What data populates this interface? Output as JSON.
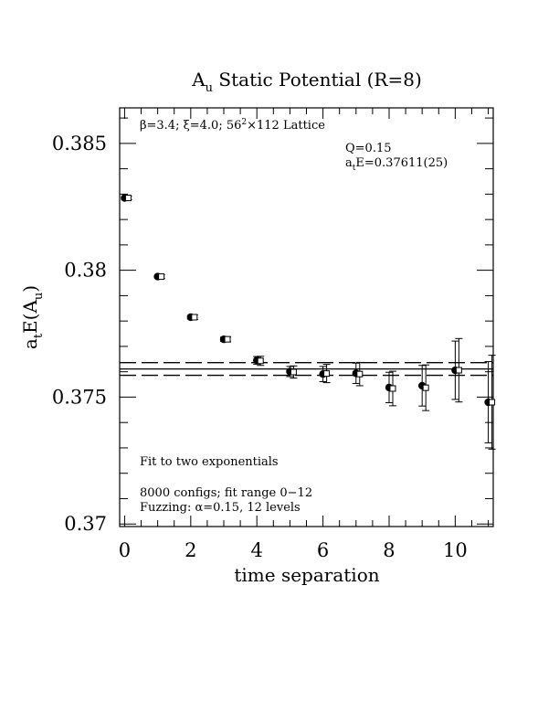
{
  "title": "A",
  "title_sub": "u",
  "title_rest": " Static Potential (R=8)",
  "xlabel": "time separation",
  "ylabel_main": "a",
  "ylabel_sub_t": "t",
  "ylabel_mid": "E(A",
  "ylabel_sub_u": "u",
  "ylabel_end": ")",
  "annotations": {
    "lattice_pre": "β=3.4; ξ=4.0; 56",
    "lattice_sup": "2",
    "lattice_post": "×112 Lattice",
    "q": "Q=0.15",
    "energy_a": "a",
    "energy_sub": "t",
    "energy_rest": "E=0.37611(25)",
    "fit": "Fit to two exponentials",
    "configs": "8000 configs; fit range 0−12",
    "fuzzing": "Fuzzing: α=0.15, 12 levels"
  },
  "chart_data": {
    "type": "scatter",
    "xlim": [
      -0.15,
      11.15
    ],
    "ylim": [
      0.3699,
      0.3864
    ],
    "x_ticks": [
      0,
      2,
      4,
      6,
      8,
      10
    ],
    "x_tick_labels": [
      "0",
      "2",
      "4",
      "6",
      "8",
      "10"
    ],
    "y_ticks": [
      0.37,
      0.375,
      0.38,
      0.385
    ],
    "y_tick_labels": [
      "0.37",
      "0.375",
      "0.38",
      "0.385"
    ],
    "fit": {
      "center": 0.37611,
      "lower": 0.37586,
      "upper": 0.37636,
      "x_range": [
        -0.15,
        11.15
      ]
    },
    "series": [
      {
        "marker": "filled-circle",
        "points": [
          {
            "x": 0,
            "y": 0.38285,
            "err": 5e-05
          },
          {
            "x": 1,
            "y": 0.37975,
            "err": 5e-05
          },
          {
            "x": 2,
            "y": 0.37815,
            "err": 7e-05
          },
          {
            "x": 3,
            "y": 0.37728,
            "err": 8e-05
          },
          {
            "x": 4,
            "y": 0.37645,
            "err": 0.00015
          },
          {
            "x": 5,
            "y": 0.37601,
            "err": 0.0002
          },
          {
            "x": 6,
            "y": 0.37591,
            "err": 0.0003
          },
          {
            "x": 7,
            "y": 0.37594,
            "err": 0.0004
          },
          {
            "x": 8,
            "y": 0.37538,
            "err": 0.0006
          },
          {
            "x": 9,
            "y": 0.37545,
            "err": 0.0008
          },
          {
            "x": 10,
            "y": 0.37606,
            "err": 0.00115
          },
          {
            "x": 11,
            "y": 0.3748,
            "err": 0.0016
          }
        ]
      },
      {
        "marker": "open-square",
        "points": [
          {
            "x": 0,
            "y": 0.38285,
            "err": 7e-05
          },
          {
            "x": 1,
            "y": 0.37975,
            "err": 7e-05
          },
          {
            "x": 2,
            "y": 0.37815,
            "err": 9e-05
          },
          {
            "x": 3,
            "y": 0.37728,
            "err": 0.0001
          },
          {
            "x": 4,
            "y": 0.37643,
            "err": 0.00018
          },
          {
            "x": 5,
            "y": 0.37599,
            "err": 0.00024
          },
          {
            "x": 6,
            "y": 0.37593,
            "err": 0.00036
          },
          {
            "x": 7,
            "y": 0.37591,
            "err": 0.00046
          },
          {
            "x": 8,
            "y": 0.37534,
            "err": 0.00068
          },
          {
            "x": 9,
            "y": 0.37537,
            "err": 0.0009
          },
          {
            "x": 10,
            "y": 0.37606,
            "err": 0.00125
          },
          {
            "x": 11,
            "y": 0.3748,
            "err": 0.00185
          }
        ]
      }
    ]
  }
}
